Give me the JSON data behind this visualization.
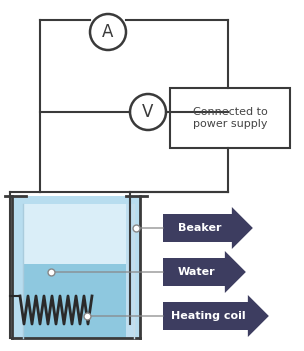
{
  "bg_color": "#ffffff",
  "line_color": "#3a3a3a",
  "beaker_outer_color": "#b8ddef",
  "beaker_inner_light_color": "#daeef8",
  "water_color": "#8ec8df",
  "water_right_strip_color": "#c0dff0",
  "inner_glass_color": "#d0eaf8",
  "coil_color": "#2a2a2a",
  "label_bg_color": "#3d3d60",
  "label_text_color": "#ffffff",
  "ammeter_label": "A",
  "voltmeter_label": "V",
  "power_supply_text": "Connected to\npower supply",
  "beaker_label": "Beaker",
  "water_label": "Water",
  "coil_label": "Heating coil",
  "fig_width": 3.04,
  "fig_height": 3.51,
  "dpi": 100
}
